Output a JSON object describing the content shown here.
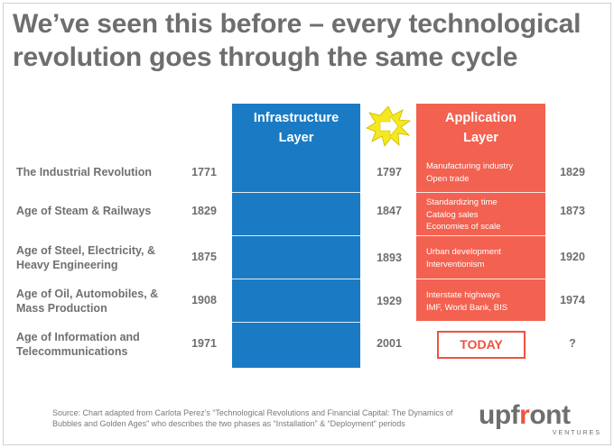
{
  "title": "We’ve seen this before – every technological revolution goes through the same cycle",
  "infrastructure_header": [
    "Infrastructure",
    "Layer"
  ],
  "application_header": [
    "Application",
    "Layer"
  ],
  "rows": [
    {
      "name": [
        "The Industrial Revolution"
      ],
      "start": "1771",
      "mid": "1797",
      "app": [
        "Manufacturing industry",
        "Open trade"
      ],
      "end": "1829"
    },
    {
      "name": [
        "Age of Steam & Railways"
      ],
      "start": "1829",
      "mid": "1847",
      "app": [
        "Standardizing time",
        "Catalog sales",
        "Economies of scale"
      ],
      "end": "1873"
    },
    {
      "name": [
        "Age of Steel, Electricity, &",
        "Heavy Engineering"
      ],
      "start": "1875",
      "mid": "1893",
      "app": [
        "Urban development",
        "Interventionism"
      ],
      "end": "1920"
    },
    {
      "name": [
        "Age of Oil, Automobiles, &",
        "Mass Production"
      ],
      "start": "1908",
      "mid": "1929",
      "app": [
        "Interstate highways",
        "IMF, World Bank, BIS"
      ],
      "end": "1974"
    },
    {
      "name": [
        "Age of Information and",
        "Telecommunications"
      ],
      "start": "1971",
      "mid": "2001",
      "app": [],
      "end": "?"
    }
  ],
  "today_label": "TODAY",
  "source": "Source: Chart adapted from Carlota Perez’s “Technological Revolutions and Financial Capital: The Dynamics of Bubbles and Golden Ages” who describes the two phases as “Installation” & “Deployment” periods",
  "logo": {
    "prefix": "upf",
    "accent": "r",
    "suffix": "ont",
    "sub": "VENTURES"
  },
  "colors": {
    "infrastructure": "#1a7bc4",
    "application": "#f36150",
    "accent": "#f0523f",
    "burst": "#f5e81c"
  }
}
